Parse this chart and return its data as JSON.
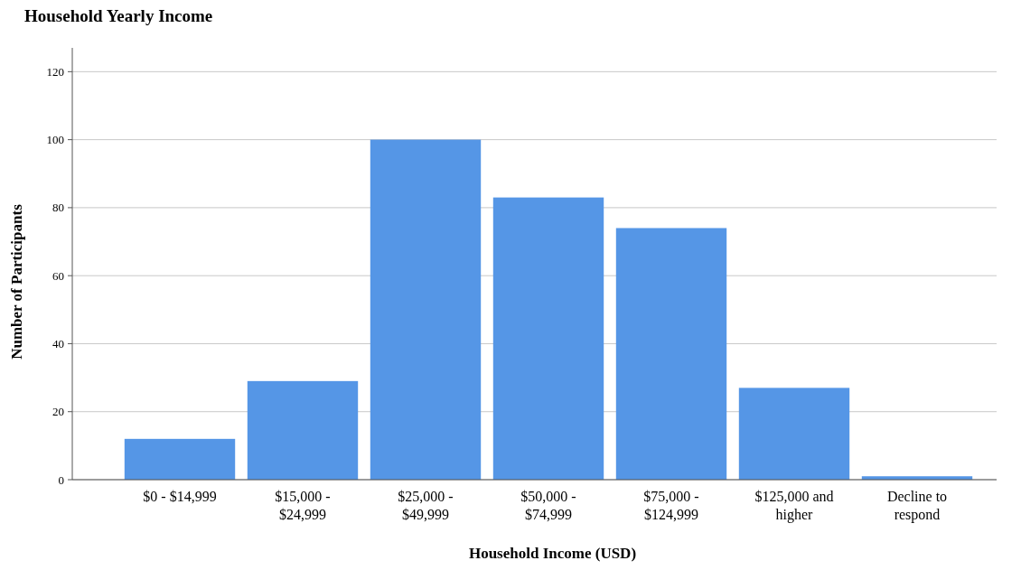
{
  "chart_data": {
    "type": "bar",
    "title": "Household Yearly Income",
    "xlabel": "Household Income (USD)",
    "ylabel": "Number of Participants",
    "categories": [
      "$0 - $14,999",
      "$15,000 - $24,999",
      "$25,000 - $49,999",
      "$50,000 - $74,999",
      "$75,000 - $124,999",
      "$125,000 and higher",
      "Decline to respond"
    ],
    "values": [
      12,
      29,
      100,
      83,
      74,
      27,
      1
    ],
    "color": "#5596e6",
    "ylim": [
      0,
      127
    ],
    "yticks": [
      0,
      20,
      40,
      60,
      80,
      100,
      120
    ],
    "grid": "y"
  }
}
